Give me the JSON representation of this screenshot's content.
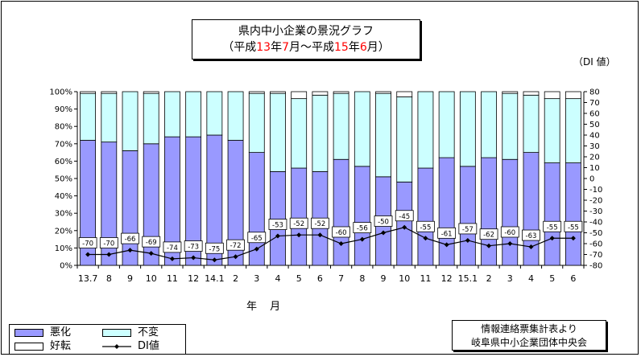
{
  "title": {
    "line1": "県内中小企業の景況グラフ",
    "line2_parts": [
      "（平成",
      "13",
      "年",
      "7",
      "月～平成",
      "15",
      "年",
      "6",
      "月）"
    ]
  },
  "right_axis_unit": "（DI 値）",
  "x_unit": "年 月",
  "legend": {
    "worse": "悪化",
    "unchanged": "不変",
    "better": "好転",
    "di": "DI値"
  },
  "source": {
    "line1": "情報連絡票集計表より",
    "line2": "岐阜県中小企業団体中央会"
  },
  "colors": {
    "worse": "#9999ff",
    "unchanged": "#ccffff",
    "better": "#ffffff",
    "di_line": "#000000",
    "title_highlight": "#ff0000"
  },
  "chart_data": {
    "type": "bar",
    "stacked": true,
    "categories": [
      "13.7",
      "8",
      "9",
      "10",
      "11",
      "12",
      "14.1",
      "2",
      "3",
      "4",
      "5",
      "6",
      "7",
      "8",
      "9",
      "10",
      "11",
      "12",
      "15.1",
      "2",
      "3",
      "4",
      "5",
      "6"
    ],
    "left_axis": {
      "ylim": [
        0,
        100
      ],
      "ticks": [
        0,
        10,
        20,
        30,
        40,
        50,
        60,
        70,
        80,
        90,
        100
      ],
      "format": "%"
    },
    "right_axis": {
      "ylim": [
        -80,
        80
      ],
      "ticks": [
        -80,
        -70,
        -60,
        -50,
        -40,
        -30,
        -20,
        -10,
        0,
        10,
        20,
        30,
        40,
        50,
        60,
        70,
        80
      ]
    },
    "series": [
      {
        "name": "悪化",
        "axis": "left",
        "values": [
          72,
          71,
          66,
          70,
          74,
          74,
          75,
          72,
          65,
          54,
          56,
          54,
          61,
          57,
          51,
          48,
          56,
          62,
          57,
          62,
          61,
          65,
          59,
          59
        ]
      },
      {
        "name": "不変",
        "axis": "left",
        "values": [
          27,
          28,
          34,
          29,
          26,
          26,
          25,
          28,
          34,
          45,
          40,
          44,
          38,
          43,
          48,
          49,
          44,
          38,
          43,
          38,
          38,
          33,
          37,
          37
        ]
      },
      {
        "name": "好転",
        "axis": "left",
        "values": [
          1,
          1,
          0,
          1,
          0,
          0,
          0,
          0,
          1,
          1,
          4,
          2,
          1,
          0,
          1,
          3,
          0,
          0,
          0,
          0,
          1,
          2,
          4,
          4
        ]
      },
      {
        "name": "DI値",
        "type": "line",
        "axis": "right",
        "values": [
          -70,
          -70,
          -66,
          -69,
          -74,
          -73,
          -75,
          -72,
          -65,
          -53,
          -52,
          -52,
          -60,
          -56,
          -50,
          -45,
          -55,
          -61,
          -57,
          -62,
          -60,
          -63,
          -55,
          -55
        ]
      }
    ],
    "grid": false
  }
}
